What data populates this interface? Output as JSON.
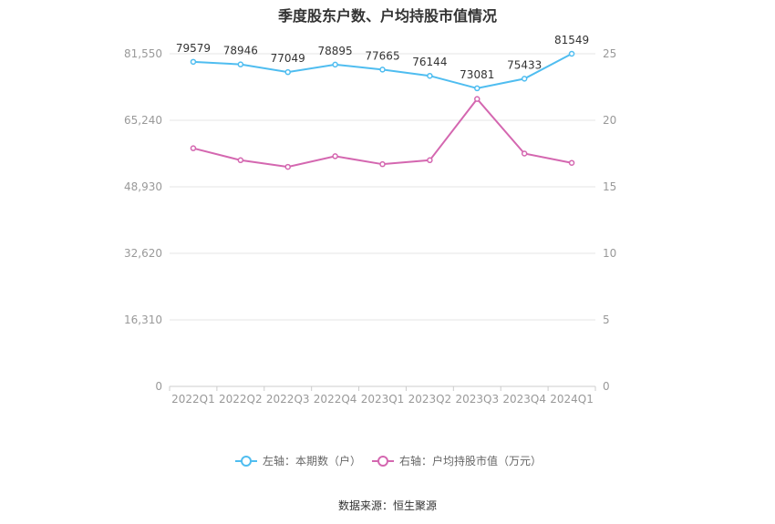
{
  "title": "季度股东户数、户均持股市值情况",
  "source": "数据来源：恒生聚源",
  "chart_data": {
    "type": "line",
    "categories": [
      "2022Q1",
      "2022Q2",
      "2022Q3",
      "2022Q4",
      "2023Q1",
      "2023Q2",
      "2023Q3",
      "2023Q4",
      "2024Q1"
    ],
    "left_axis": {
      "ticks": [
        "0",
        "16,310",
        "32,620",
        "48,930",
        "65,240",
        "81,550"
      ],
      "ylim": [
        0,
        81550
      ]
    },
    "right_axis": {
      "ticks": [
        "0",
        "5",
        "10",
        "15",
        "20",
        "25"
      ],
      "ylim": [
        0,
        25
      ]
    },
    "series": [
      {
        "name": "左轴：本期数（户）",
        "axis": "left",
        "color": "#4fbdf0",
        "values": [
          79579,
          78946,
          77049,
          78895,
          77665,
          76144,
          73081,
          75433,
          81549
        ],
        "labels": [
          "79579",
          "78946",
          "77049",
          "78895",
          "77665",
          "76144",
          "73081",
          "75433",
          "81549"
        ]
      },
      {
        "name": "右轴：户均持股市值（万元）",
        "axis": "right",
        "color": "#d467b0",
        "values": [
          17.9,
          17.0,
          16.5,
          17.3,
          16.7,
          17.0,
          21.6,
          17.5,
          16.8
        ]
      }
    ],
    "grid": true,
    "legend": "bottom-center"
  }
}
